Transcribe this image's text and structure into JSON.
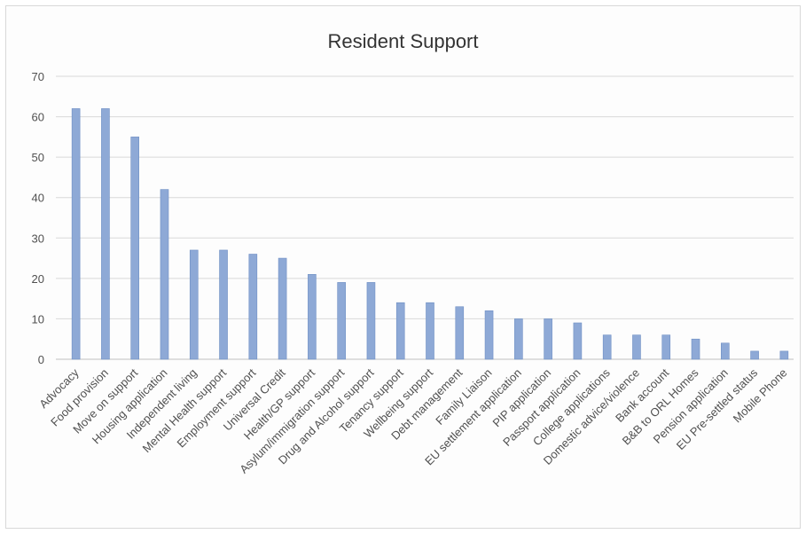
{
  "chart_data": {
    "type": "bar",
    "title": "Resident Support",
    "xlabel": "",
    "ylabel": "",
    "ylim": [
      0,
      70
    ],
    "yticks": [
      0,
      10,
      20,
      30,
      40,
      50,
      60,
      70
    ],
    "grid": true,
    "legend": "none",
    "bar_color": "#8ea9d6",
    "bar_edge_color": "#6f8fc4",
    "categories": [
      "Advocacy",
      "Food provision",
      "Move on support",
      "Housing application",
      "Independent living",
      "Mental Health support",
      "Employment support",
      "Universal Credit",
      "Health/GP support",
      "Asylum/immigration support",
      "Drug and Alcohol support",
      "Tenancy support",
      "Wellbeing support",
      "Debt management",
      "Family Liaison",
      "EU settlement application",
      "PIP application",
      "Passport application",
      "College applications",
      "Domestic advice/violence",
      "Bank account",
      "B&B to ORL Homes",
      "Pension application",
      "EU Pre-settled status",
      "Mobile Phone"
    ],
    "values": [
      62,
      62,
      55,
      42,
      27,
      27,
      26,
      25,
      21,
      19,
      19,
      14,
      14,
      13,
      12,
      10,
      10,
      9,
      6,
      6,
      6,
      5,
      4,
      2,
      2
    ]
  }
}
